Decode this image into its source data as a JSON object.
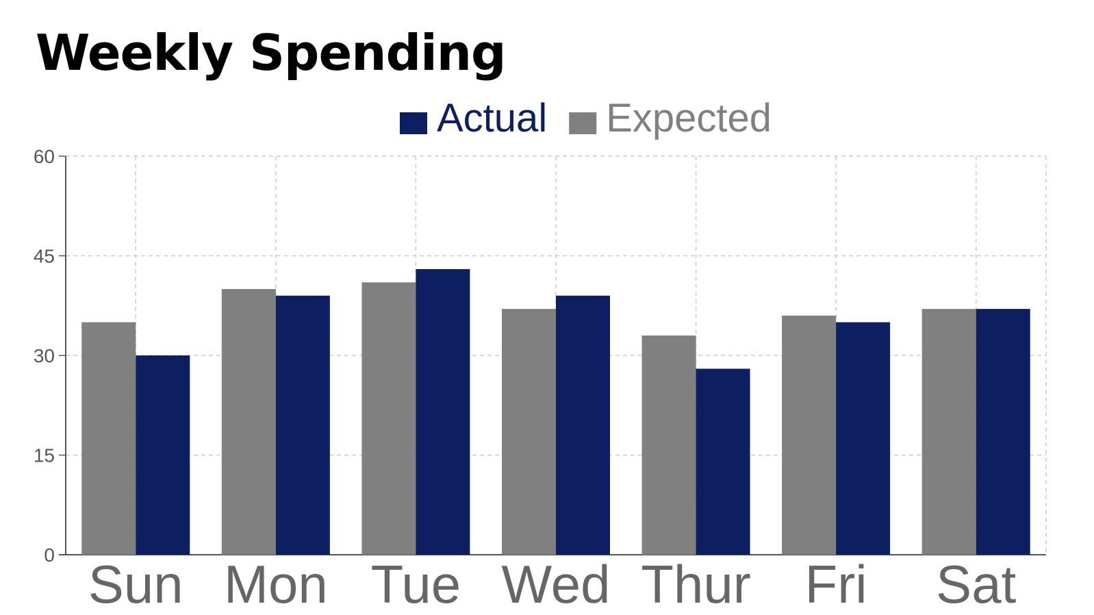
{
  "chart_data": {
    "type": "bar",
    "title": "Weekly Spending",
    "categories": [
      "Sun",
      "Mon",
      "Tue",
      "Wed",
      "Thur",
      "Fri",
      "Sat"
    ],
    "series": [
      {
        "name": "Expected",
        "color": "#808080",
        "values": [
          35,
          40,
          41,
          37,
          33,
          36,
          37
        ]
      },
      {
        "name": "Actual",
        "color": "#0d1f60",
        "values": [
          30,
          39,
          43,
          39,
          28,
          35,
          37
        ]
      }
    ],
    "legend_order": [
      "Actual",
      "Expected"
    ],
    "legend_placement": "top-center",
    "yticks": [
      0,
      15,
      30,
      45,
      60
    ],
    "ylim": [
      0,
      60
    ],
    "grid": true,
    "xlabel": "",
    "ylabel": ""
  }
}
